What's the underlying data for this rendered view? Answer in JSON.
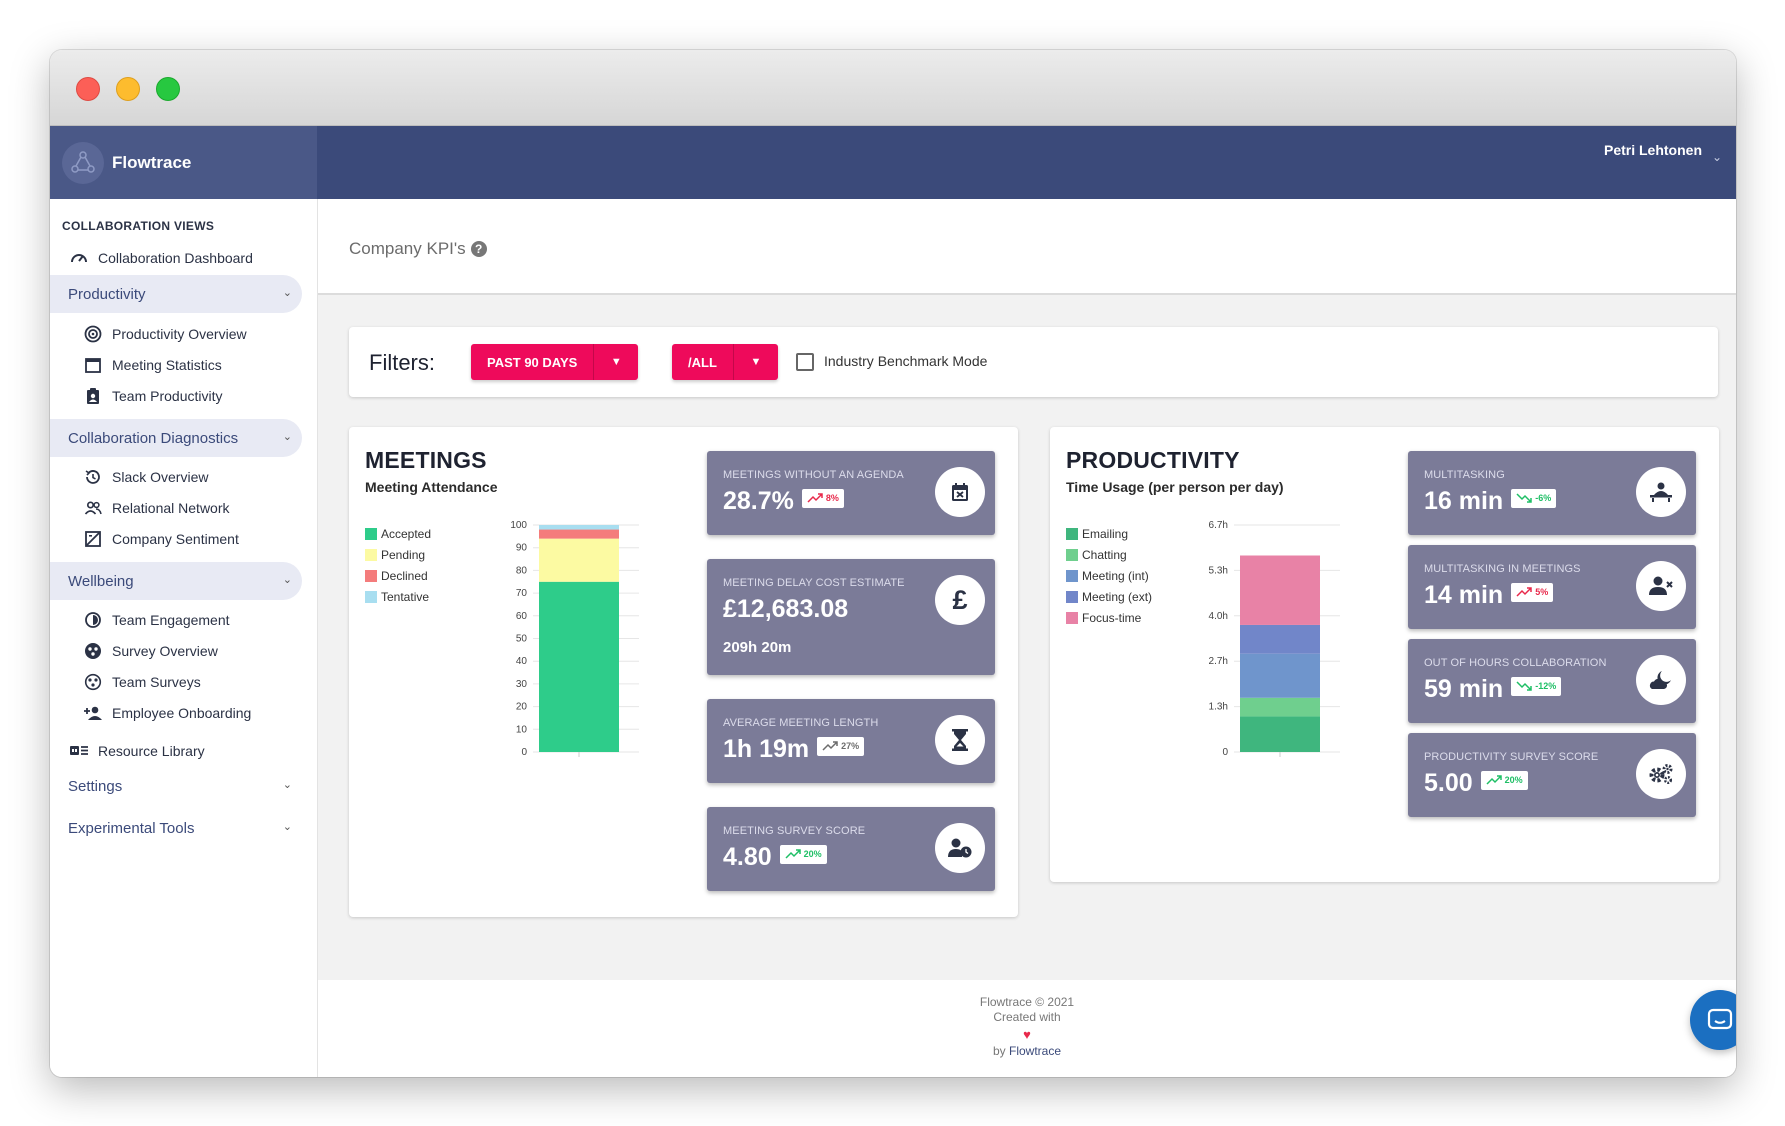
{
  "app": {
    "name": "Flowtrace",
    "user": "Petri Lehtonen"
  },
  "sidebar": {
    "heading": "COLLABORATION VIEWS",
    "dashboard": "Collaboration Dashboard",
    "groups": [
      {
        "label": "Productivity",
        "items": [
          "Productivity Overview",
          "Meeting Statistics",
          "Team Productivity"
        ]
      },
      {
        "label": "Collaboration Diagnostics",
        "items": [
          "Slack Overview",
          "Relational Network",
          "Company Sentiment"
        ]
      },
      {
        "label": "Wellbeing",
        "items": [
          "Team Engagement",
          "Survey Overview",
          "Team Surveys",
          "Employee Onboarding"
        ]
      }
    ],
    "resource_library": "Resource Library",
    "settings": "Settings",
    "experimental": "Experimental Tools"
  },
  "page": {
    "title": "Company KPI's",
    "help": "?"
  },
  "filters": {
    "label": "Filters:",
    "period": "PAST 90 DAYS",
    "scope": "/ALL",
    "benchmark_label": "Industry Benchmark Mode"
  },
  "meetings": {
    "title": "MEETINGS",
    "subtitle": "Meeting Attendance",
    "kpis": [
      {
        "label": "MEETINGS WITHOUT AN AGENDA",
        "value": "28.7%",
        "trend": "8%",
        "trend_color": "red"
      },
      {
        "label": "MEETING DELAY COST ESTIMATE",
        "value": "£12,683.08",
        "extra": "209h 20m"
      },
      {
        "label": "AVERAGE MEETING LENGTH",
        "value": "1h 19m",
        "trend": "27%",
        "trend_color": "gray"
      },
      {
        "label": "MEETING SURVEY SCORE",
        "value": "4.80",
        "trend": "20%",
        "trend_color": "green"
      }
    ]
  },
  "productivity": {
    "title": "PRODUCTIVITY",
    "subtitle": "Time Usage (per person per day)",
    "kpis": [
      {
        "label": "MULTITASKING",
        "value": "16 min",
        "trend": "-6%",
        "trend_color": "green"
      },
      {
        "label": "MULTITASKING IN MEETINGS",
        "value": "14 min",
        "trend": "5%",
        "trend_color": "red"
      },
      {
        "label": "OUT OF HOURS COLLABORATION",
        "value": "59 min",
        "trend": "-12%",
        "trend_color": "green"
      },
      {
        "label": "PRODUCTIVITY SURVEY SCORE",
        "value": "5.00",
        "trend": "20%",
        "trend_color": "green"
      }
    ]
  },
  "chart_data": [
    {
      "type": "bar",
      "title": "Meeting Attendance",
      "stacked": true,
      "categories": [
        ""
      ],
      "ylim": [
        0,
        100
      ],
      "yticks": [
        "0",
        "10",
        "20",
        "30",
        "40",
        "50",
        "60",
        "70",
        "80",
        "90",
        "100"
      ],
      "series": [
        {
          "name": "Accepted",
          "values": [
            75
          ],
          "color": "#2ecc8a"
        },
        {
          "name": "Pending",
          "values": [
            19
          ],
          "color": "#fcfaa2"
        },
        {
          "name": "Declined",
          "values": [
            4
          ],
          "color": "#f47c7c"
        },
        {
          "name": "Tentative",
          "values": [
            2
          ],
          "color": "#a8def0"
        }
      ]
    },
    {
      "type": "bar",
      "title": "Time Usage (per person per day)",
      "stacked": true,
      "categories": [
        ""
      ],
      "ylim": [
        0,
        6.7
      ],
      "yticks": [
        "0",
        "1.3h",
        "2.7h",
        "4.0h",
        "5.3h",
        "6.7h"
      ],
      "series": [
        {
          "name": "Emailing",
          "values": [
            1.05
          ],
          "color": "#3fb67e"
        },
        {
          "name": "Chatting",
          "values": [
            0.55
          ],
          "color": "#6fcf8e"
        },
        {
          "name": "Meeting (int)",
          "values": [
            1.3
          ],
          "color": "#6f95cc"
        },
        {
          "name": "Meeting (ext)",
          "values": [
            0.85
          ],
          "color": "#7186c9"
        },
        {
          "name": "Focus-time",
          "values": [
            2.05
          ],
          "color": "#e882a6"
        }
      ]
    }
  ],
  "footer": {
    "line1": "Flowtrace © 2021",
    "line2": "Created with",
    "heart": "♥",
    "by": "by",
    "link": "Flowtrace"
  }
}
